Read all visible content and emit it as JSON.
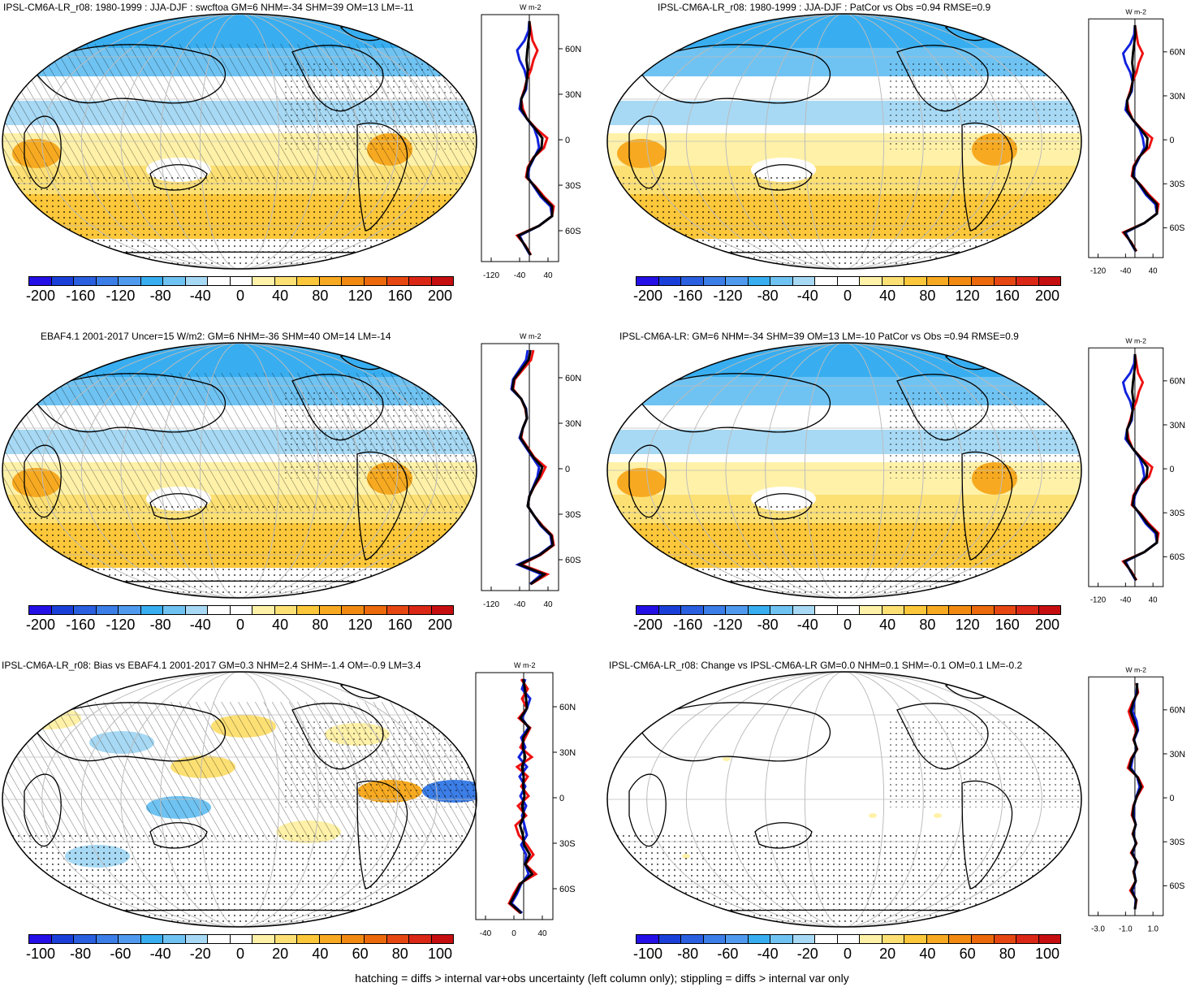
{
  "footer": "hatching = diffs > internal var+obs uncertainty (left column only); stippling = diffs > internal var only",
  "colors": {
    "scale": [
      "#2410e6",
      "#1a3fd9",
      "#2a5fe0",
      "#3c7ee8",
      "#4f9aef",
      "#38aef0",
      "#6fc3f2",
      "#a7d9f4",
      "#ffffff",
      "#ffffff",
      "#fff1a8",
      "#fde074",
      "#fcc73a",
      "#f7aa21",
      "#f28a12",
      "#ec6a0c",
      "#e64712",
      "#db2716",
      "#c60e10"
    ],
    "red": "#ee1111",
    "blue": "#1122dd",
    "black": "#000000",
    "ocean_warm": "#fbd04a",
    "ocean_cool": "#5fb5ee"
  },
  "panels": [
    {
      "id": "p1",
      "title": "IPSL-CM6A-LR_r08: 1980-1999 : JJA-DJF : swcftoa GM=6 NHM=-34 SHM=39 OM=13 LM=-11",
      "units": "W m-2",
      "cbar_ticks": [
        "-200",
        "-160",
        "-120",
        "-80",
        "-40",
        "0",
        "40",
        "80",
        "120",
        "160",
        "200"
      ],
      "zonal_xticks": [
        "-120",
        "-40",
        "40"
      ],
      "zonal_yticks": [
        "60N",
        "30N",
        "0",
        "30S",
        "60S"
      ]
    },
    {
      "id": "p2",
      "title": "IPSL-CM6A-LR_r08: 1980-1999 : JJA-DJF : PatCor vs Obs =0.94 RMSE=0.9",
      "units": "W m-2",
      "cbar_ticks": [
        "-200",
        "-160",
        "-120",
        "-80",
        "-40",
        "0",
        "40",
        "80",
        "120",
        "160",
        "200"
      ],
      "zonal_xticks": [
        "-120",
        "-40",
        "40"
      ],
      "zonal_yticks": [
        "60N",
        "30N",
        "0",
        "30S",
        "60S"
      ]
    },
    {
      "id": "p3",
      "title": "EBAF4.1 2001-2017 Uncer=15 W/m2: GM=6 NHM=-36 SHM=40 OM=14 LM=-14",
      "units": "W m-2",
      "cbar_ticks": [
        "-200",
        "-160",
        "-120",
        "-80",
        "-40",
        "0",
        "40",
        "80",
        "120",
        "160",
        "200"
      ],
      "zonal_xticks": [
        "-120",
        "-40",
        "40"
      ],
      "zonal_yticks": [
        "60N",
        "30N",
        "0",
        "30S",
        "60S"
      ]
    },
    {
      "id": "p4",
      "title": "IPSL-CM6A-LR: GM=6 NHM=-34 SHM=39 OM=13 LM=-10 PatCor vs Obs =0.94 RMSE=0.9",
      "units": "W m-2",
      "cbar_ticks": [
        "-200",
        "-160",
        "-120",
        "-80",
        "-40",
        "0",
        "40",
        "80",
        "120",
        "160",
        "200"
      ],
      "zonal_xticks": [
        "-120",
        "-40",
        "40"
      ],
      "zonal_yticks": [
        "60N",
        "30N",
        "0",
        "30S",
        "60S"
      ]
    },
    {
      "id": "p5",
      "title": "IPSL-CM6A-LR_r08: Bias vs EBAF4.1 2001-2017 GM=0.3 NHM=2.4 SHM=-1.4 OM=-0.9 LM=3.4",
      "units": "W m-2",
      "cbar_ticks": [
        "-100",
        "-80",
        "-60",
        "-40",
        "-20",
        "0",
        "20",
        "40",
        "60",
        "80",
        "100"
      ],
      "zonal_xticks": [
        "-40",
        "0",
        "40"
      ],
      "zonal_yticks": [
        "60N",
        "30N",
        "0",
        "30S",
        "60S"
      ]
    },
    {
      "id": "p6",
      "title": "IPSL-CM6A-LR_r08: Change vs IPSL-CM6A-LR GM=0.0 NHM=0.1 SHM=-0.1 OM=0.1 LM=-0.2",
      "units": "W m-2",
      "cbar_ticks": [
        "-100",
        "-80",
        "-60",
        "-40",
        "-20",
        "0",
        "20",
        "40",
        "60",
        "80",
        "100"
      ],
      "zonal_xticks": [
        "-3.0",
        "-1.0",
        "1.0"
      ],
      "zonal_yticks": [
        "60N",
        "30N",
        "0",
        "30S",
        "60S"
      ]
    }
  ]
}
